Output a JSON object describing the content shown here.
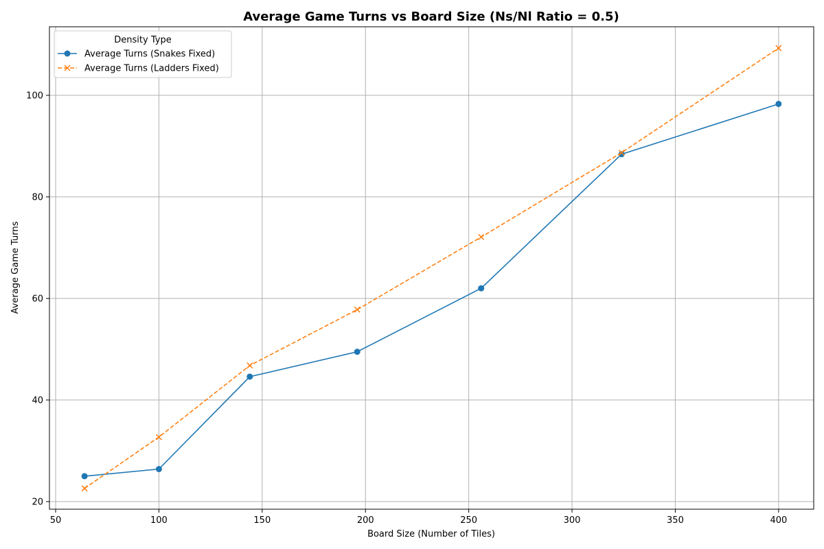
{
  "chart_data": {
    "type": "line",
    "title": "Average Game Turns vs Board Size (Ns/Nl Ratio = 0.5)",
    "xlabel": "Board Size (Number of Tiles)",
    "ylabel": "Average Game Turns",
    "xlim": [
      47,
      417
    ],
    "ylim": [
      18.5,
      113.5
    ],
    "xticks": [
      50,
      100,
      150,
      200,
      250,
      300,
      350,
      400
    ],
    "yticks": [
      20,
      40,
      60,
      80,
      100
    ],
    "grid": true,
    "legend": {
      "title": "Density Type",
      "placement": "top-left"
    },
    "series": [
      {
        "name": "Average Turns (Snakes Fixed)",
        "color": "#1f77b4",
        "line_style": "solid",
        "marker": "circle",
        "x": [
          64,
          100,
          144,
          196,
          256,
          324,
          400
        ],
        "y": [
          25.0,
          26.4,
          44.6,
          49.5,
          62.0,
          88.4,
          98.3
        ]
      },
      {
        "name": "Average Turns (Ladders Fixed)",
        "color": "#ff7f0e",
        "line_style": "dashed",
        "marker": "x",
        "x": [
          64,
          100,
          144,
          196,
          256,
          324,
          400
        ],
        "y": [
          22.6,
          32.7,
          46.8,
          57.8,
          72.1,
          88.7,
          109.3
        ]
      }
    ]
  }
}
